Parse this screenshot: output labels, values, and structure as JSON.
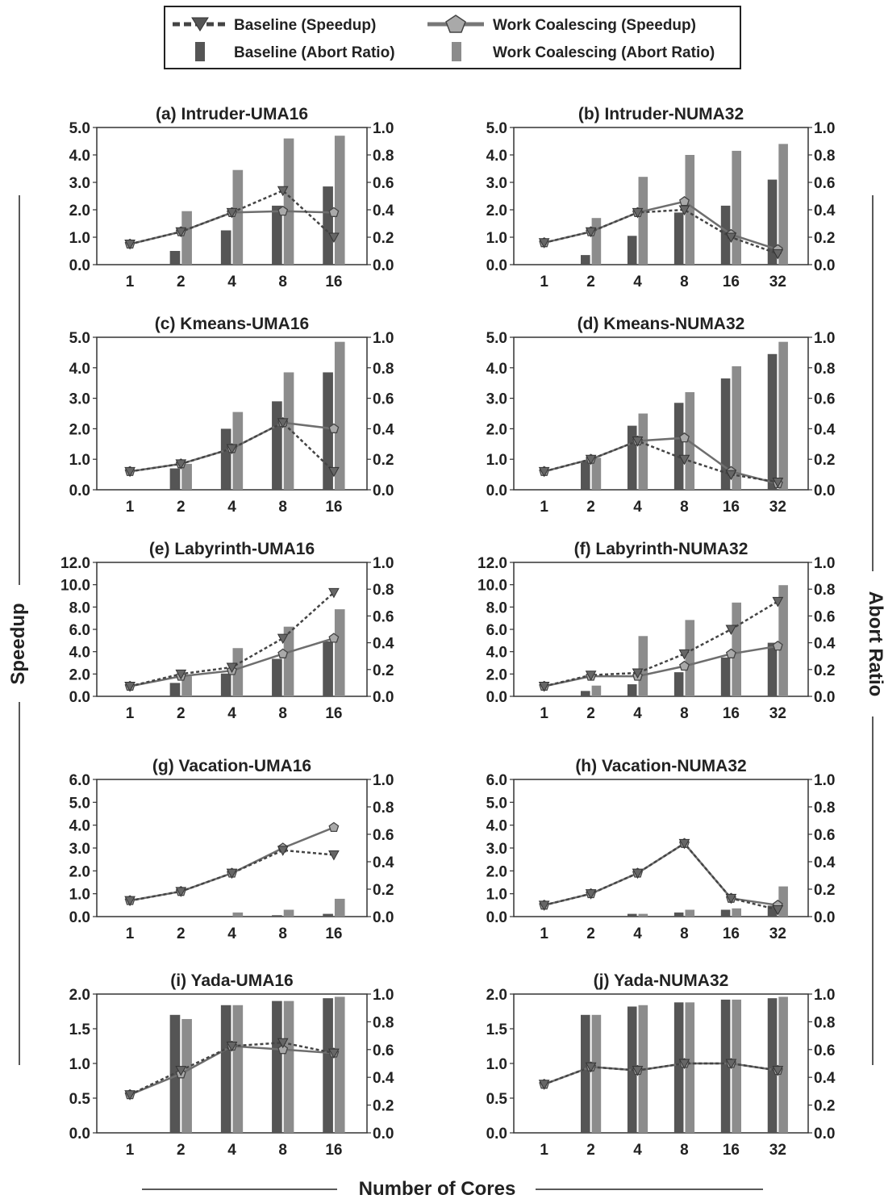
{
  "figure": {
    "x_axis_label": "Number of Cores",
    "left_axis_label": "Speedup",
    "right_axis_label": "Abort Ratio",
    "colors": {
      "baseline_bar": "#555555",
      "coalescing_bar": "#8c8c8c",
      "baseline_line": "#444444",
      "coalescing_line": "#6e6e6e",
      "marker_fill": "#a9a9a9"
    }
  },
  "legend": {
    "baseline_speedup": "Baseline (Speedup)",
    "coalescing_speedup": "Work Coalescing (Speedup)",
    "baseline_abort": "Baseline (Abort Ratio)",
    "coalescing_abort": "Work Coalescing (Abort Ratio)"
  },
  "chart_data": [
    {
      "type": "bar",
      "title": "(a) Intruder-UMA16",
      "categories": [
        "1",
        "2",
        "4",
        "8",
        "16"
      ],
      "ylim": [
        0,
        5
      ],
      "yticks": [
        "0.0",
        "1.0",
        "2.0",
        "3.0",
        "4.0",
        "5.0"
      ],
      "y2lim": [
        0,
        1
      ],
      "y2ticks": [
        "0.0",
        "0.2",
        "0.4",
        "0.6",
        "0.8",
        "1.0"
      ],
      "series": [
        {
          "name": "Baseline (Abort Ratio)",
          "kind": "bar",
          "axis": "right",
          "values": [
            0,
            0.1,
            0.25,
            0.43,
            0.57
          ]
        },
        {
          "name": "Work Coalescing (Abort Ratio)",
          "kind": "bar",
          "axis": "right",
          "values": [
            0,
            0.39,
            0.69,
            0.92,
            0.94
          ]
        },
        {
          "name": "Baseline (Speedup)",
          "kind": "line",
          "axis": "left",
          "values": [
            0.75,
            1.2,
            1.9,
            2.7,
            1.0
          ]
        },
        {
          "name": "Work Coalescing (Speedup)",
          "kind": "line",
          "axis": "left",
          "values": [
            0.75,
            1.2,
            1.9,
            1.95,
            1.9
          ]
        }
      ]
    },
    {
      "type": "bar",
      "title": "(b) Intruder-NUMA32",
      "categories": [
        "1",
        "2",
        "4",
        "8",
        "16",
        "32"
      ],
      "ylim": [
        0,
        5
      ],
      "yticks": [
        "0.0",
        "1.0",
        "2.0",
        "3.0",
        "4.0",
        "5.0"
      ],
      "y2lim": [
        0,
        1
      ],
      "y2ticks": [
        "0.0",
        "0.2",
        "0.4",
        "0.6",
        "0.8",
        "1.0"
      ],
      "series": [
        {
          "name": "Baseline (Abort Ratio)",
          "kind": "bar",
          "axis": "right",
          "values": [
            0,
            0.07,
            0.21,
            0.38,
            0.43,
            0.62
          ]
        },
        {
          "name": "Work Coalescing (Abort Ratio)",
          "kind": "bar",
          "axis": "right",
          "values": [
            0,
            0.34,
            0.64,
            0.8,
            0.83,
            0.88
          ]
        },
        {
          "name": "Baseline (Speedup)",
          "kind": "line",
          "axis": "left",
          "values": [
            0.8,
            1.2,
            1.9,
            2.0,
            1.0,
            0.4
          ]
        },
        {
          "name": "Work Coalescing (Speedup)",
          "kind": "line",
          "axis": "left",
          "values": [
            0.8,
            1.2,
            1.9,
            2.3,
            1.1,
            0.55
          ]
        }
      ]
    },
    {
      "type": "bar",
      "title": "(c) Kmeans-UMA16",
      "categories": [
        "1",
        "2",
        "4",
        "8",
        "16"
      ],
      "ylim": [
        0,
        5
      ],
      "yticks": [
        "0.0",
        "1.0",
        "2.0",
        "3.0",
        "4.0",
        "5.0"
      ],
      "y2lim": [
        0,
        1
      ],
      "y2ticks": [
        "0.0",
        "0.2",
        "0.4",
        "0.6",
        "0.8",
        "1.0"
      ],
      "series": [
        {
          "name": "Baseline (Abort Ratio)",
          "kind": "bar",
          "axis": "right",
          "values": [
            0,
            0.14,
            0.4,
            0.58,
            0.77
          ]
        },
        {
          "name": "Work Coalescing (Abort Ratio)",
          "kind": "bar",
          "axis": "right",
          "values": [
            0,
            0.17,
            0.51,
            0.77,
            0.97
          ]
        },
        {
          "name": "Baseline (Speedup)",
          "kind": "line",
          "axis": "left",
          "values": [
            0.6,
            0.85,
            1.35,
            2.2,
            0.6
          ]
        },
        {
          "name": "Work Coalescing (Speedup)",
          "kind": "line",
          "axis": "left",
          "values": [
            0.6,
            0.85,
            1.35,
            2.2,
            2.0
          ]
        }
      ]
    },
    {
      "type": "bar",
      "title": "(d) Kmeans-NUMA32",
      "categories": [
        "1",
        "2",
        "4",
        "8",
        "16",
        "32"
      ],
      "ylim": [
        0,
        5
      ],
      "yticks": [
        "0.0",
        "1.0",
        "2.0",
        "3.0",
        "4.0",
        "5.0"
      ],
      "y2lim": [
        0,
        1
      ],
      "y2ticks": [
        "0.0",
        "0.2",
        "0.4",
        "0.6",
        "0.8",
        "1.0"
      ],
      "series": [
        {
          "name": "Baseline (Abort Ratio)",
          "kind": "bar",
          "axis": "right",
          "values": [
            0,
            0.19,
            0.42,
            0.57,
            0.73,
            0.89
          ]
        },
        {
          "name": "Work Coalescing (Abort Ratio)",
          "kind": "bar",
          "axis": "right",
          "values": [
            0,
            0.21,
            0.5,
            0.64,
            0.81,
            0.97
          ]
        },
        {
          "name": "Baseline (Speedup)",
          "kind": "line",
          "axis": "left",
          "values": [
            0.6,
            1.0,
            1.6,
            1.0,
            0.5,
            0.25
          ]
        },
        {
          "name": "Work Coalescing (Speedup)",
          "kind": "line",
          "axis": "left",
          "values": [
            0.6,
            1.0,
            1.6,
            1.7,
            0.6,
            0.2
          ]
        }
      ]
    },
    {
      "type": "bar",
      "title": "(e) Labyrinth-UMA16",
      "categories": [
        "1",
        "2",
        "4",
        "8",
        "16"
      ],
      "ylim": [
        0,
        12
      ],
      "yticks": [
        "0.0",
        "2.0",
        "4.0",
        "6.0",
        "8.0",
        "10.0",
        "12.0"
      ],
      "y2lim": [
        0,
        1
      ],
      "y2ticks": [
        "0.0",
        "0.2",
        "0.4",
        "0.6",
        "0.8",
        "1.0"
      ],
      "series": [
        {
          "name": "Baseline (Abort Ratio)",
          "kind": "bar",
          "axis": "right",
          "values": [
            0,
            0.1,
            0.17,
            0.28,
            0.41
          ]
        },
        {
          "name": "Work Coalescing (Abort Ratio)",
          "kind": "bar",
          "axis": "right",
          "values": [
            0,
            0.15,
            0.36,
            0.52,
            0.65
          ]
        },
        {
          "name": "Baseline (Speedup)",
          "kind": "line",
          "axis": "left",
          "values": [
            0.9,
            2.0,
            2.6,
            5.2,
            9.3
          ]
        },
        {
          "name": "Work Coalescing (Speedup)",
          "kind": "line",
          "axis": "left",
          "values": [
            0.9,
            1.8,
            2.3,
            3.8,
            5.2
          ]
        }
      ]
    },
    {
      "type": "bar",
      "title": "(f) Labyrinth-NUMA32",
      "categories": [
        "1",
        "2",
        "4",
        "8",
        "16",
        "32"
      ],
      "ylim": [
        0,
        12
      ],
      "yticks": [
        "0.0",
        "2.0",
        "4.0",
        "6.0",
        "8.0",
        "10.0",
        "12.0"
      ],
      "y2lim": [
        0,
        1
      ],
      "y2ticks": [
        "0.0",
        "0.2",
        "0.4",
        "0.6",
        "0.8",
        "1.0"
      ],
      "series": [
        {
          "name": "Baseline (Abort Ratio)",
          "kind": "bar",
          "axis": "right",
          "values": [
            0,
            0.04,
            0.09,
            0.18,
            0.29,
            0.4
          ]
        },
        {
          "name": "Work Coalescing (Abort Ratio)",
          "kind": "bar",
          "axis": "right",
          "values": [
            0,
            0.08,
            0.45,
            0.57,
            0.7,
            0.83
          ]
        },
        {
          "name": "Baseline (Speedup)",
          "kind": "line",
          "axis": "left",
          "values": [
            0.9,
            1.9,
            2.1,
            3.8,
            6.0,
            8.5
          ]
        },
        {
          "name": "Work Coalescing (Speedup)",
          "kind": "line",
          "axis": "left",
          "values": [
            0.9,
            1.8,
            1.8,
            2.7,
            3.8,
            4.5
          ]
        }
      ]
    },
    {
      "type": "bar",
      "title": "(g) Vacation-UMA16",
      "categories": [
        "1",
        "2",
        "4",
        "8",
        "16"
      ],
      "ylim": [
        0,
        6
      ],
      "yticks": [
        "0.0",
        "1.0",
        "2.0",
        "3.0",
        "4.0",
        "5.0",
        "6.0"
      ],
      "y2lim": [
        0,
        1
      ],
      "y2ticks": [
        "0.0",
        "0.2",
        "0.4",
        "0.6",
        "0.8",
        "1.0"
      ],
      "series": [
        {
          "name": "Baseline (Abort Ratio)",
          "kind": "bar",
          "axis": "right",
          "values": [
            0,
            0,
            0,
            0.01,
            0.02
          ]
        },
        {
          "name": "Work Coalescing (Abort Ratio)",
          "kind": "bar",
          "axis": "right",
          "values": [
            0,
            0,
            0.03,
            0.05,
            0.13
          ]
        },
        {
          "name": "Baseline (Speedup)",
          "kind": "line",
          "axis": "left",
          "values": [
            0.7,
            1.1,
            1.9,
            2.9,
            2.7
          ]
        },
        {
          "name": "Work Coalescing (Speedup)",
          "kind": "line",
          "axis": "left",
          "values": [
            0.7,
            1.1,
            1.9,
            3.0,
            3.9
          ]
        }
      ]
    },
    {
      "type": "bar",
      "title": "(h) Vacation-NUMA32",
      "categories": [
        "1",
        "2",
        "4",
        "8",
        "16",
        "32"
      ],
      "ylim": [
        0,
        6
      ],
      "yticks": [
        "0.0",
        "1.0",
        "2.0",
        "3.0",
        "4.0",
        "5.0",
        "6.0"
      ],
      "y2lim": [
        0,
        1
      ],
      "y2ticks": [
        "0.0",
        "0.2",
        "0.4",
        "0.6",
        "0.8",
        "1.0"
      ],
      "series": [
        {
          "name": "Baseline (Abort Ratio)",
          "kind": "bar",
          "axis": "right",
          "values": [
            0,
            0,
            0.02,
            0.03,
            0.05,
            0.08
          ]
        },
        {
          "name": "Work Coalescing (Abort Ratio)",
          "kind": "bar",
          "axis": "right",
          "values": [
            0,
            0,
            0.02,
            0.05,
            0.06,
            0.22
          ]
        },
        {
          "name": "Baseline (Speedup)",
          "kind": "line",
          "axis": "left",
          "values": [
            0.5,
            1.0,
            1.9,
            3.2,
            0.8,
            0.3
          ]
        },
        {
          "name": "Work Coalescing (Speedup)",
          "kind": "line",
          "axis": "left",
          "values": [
            0.5,
            1.0,
            1.9,
            3.2,
            0.8,
            0.5
          ]
        }
      ]
    },
    {
      "type": "bar",
      "title": "(i) Yada-UMA16",
      "categories": [
        "1",
        "2",
        "4",
        "8",
        "16"
      ],
      "ylim": [
        0,
        2
      ],
      "yticks": [
        "0.0",
        "0.5",
        "1.0",
        "1.5",
        "2.0"
      ],
      "y2lim": [
        0,
        1
      ],
      "y2ticks": [
        "0.0",
        "0.2",
        "0.4",
        "0.6",
        "0.8",
        "1.0"
      ],
      "series": [
        {
          "name": "Baseline (Abort Ratio)",
          "kind": "bar",
          "axis": "right",
          "values": [
            0,
            0.85,
            0.92,
            0.95,
            0.97
          ]
        },
        {
          "name": "Work Coalescing (Abort Ratio)",
          "kind": "bar",
          "axis": "right",
          "values": [
            0,
            0.82,
            0.92,
            0.95,
            0.98
          ]
        },
        {
          "name": "Baseline (Speedup)",
          "kind": "line",
          "axis": "left",
          "values": [
            0.55,
            0.9,
            1.25,
            1.3,
            1.15
          ]
        },
        {
          "name": "Work Coalescing (Speedup)",
          "kind": "line",
          "axis": "left",
          "values": [
            0.55,
            0.85,
            1.25,
            1.2,
            1.15
          ]
        }
      ]
    },
    {
      "type": "bar",
      "title": "(j) Yada-NUMA32",
      "categories": [
        "1",
        "2",
        "4",
        "8",
        "16",
        "32"
      ],
      "ylim": [
        0,
        2
      ],
      "yticks": [
        "0.0",
        "0.5",
        "1.0",
        "1.5",
        "2.0"
      ],
      "y2lim": [
        0,
        1
      ],
      "y2ticks": [
        "0.0",
        "0.2",
        "0.4",
        "0.6",
        "0.8",
        "1.0"
      ],
      "series": [
        {
          "name": "Baseline (Abort Ratio)",
          "kind": "bar",
          "axis": "right",
          "values": [
            0,
            0.85,
            0.91,
            0.94,
            0.96,
            0.97
          ]
        },
        {
          "name": "Work Coalescing (Abort Ratio)",
          "kind": "bar",
          "axis": "right",
          "values": [
            0,
            0.85,
            0.92,
            0.94,
            0.96,
            0.98
          ]
        },
        {
          "name": "Baseline (Speedup)",
          "kind": "line",
          "axis": "left",
          "values": [
            0.7,
            0.95,
            0.9,
            1.0,
            1.0,
            0.9
          ]
        },
        {
          "name": "Work Coalescing (Speedup)",
          "kind": "line",
          "axis": "left",
          "values": [
            0.7,
            0.95,
            0.9,
            1.0,
            1.0,
            0.9
          ]
        }
      ]
    }
  ]
}
